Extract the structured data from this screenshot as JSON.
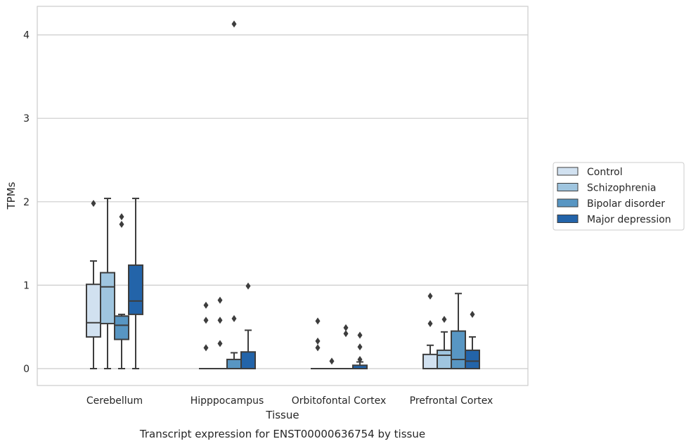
{
  "chart_data": {
    "type": "box",
    "caption": "Transcript expression for ENST00000636754 by tissue",
    "xlabel": "Tissue",
    "ylabel": "TPMs",
    "ylim": [
      -0.2,
      4.35
    ],
    "yticks": [
      "0",
      "1",
      "2",
      "3",
      "4"
    ],
    "grid": "horizontal",
    "legend_position": "right",
    "categories": [
      "Cerebellum",
      "Hipppocampus",
      "Orbitofontal Cortex",
      "Prefrontal Cortex"
    ],
    "series": [
      {
        "name": "Control",
        "color": "#d1e1f0",
        "boxes": [
          {
            "whislo": 0.0,
            "q1": 0.38,
            "med": 0.55,
            "q3": 1.01,
            "whishi": 1.29,
            "fliers": [
              1.98
            ]
          },
          {
            "whislo": 0.0,
            "q1": 0.0,
            "med": 0.0,
            "q3": 0.0,
            "whishi": 0.0,
            "fliers": [
              0.25,
              0.58,
              0.76
            ]
          },
          {
            "whislo": 0.0,
            "q1": 0.0,
            "med": 0.0,
            "q3": 0.0,
            "whishi": 0.0,
            "fliers": [
              0.25,
              0.33,
              0.57
            ]
          },
          {
            "whislo": 0.0,
            "q1": 0.0,
            "med": 0.0,
            "q3": 0.17,
            "whishi": 0.28,
            "fliers": [
              0.54,
              0.87
            ]
          }
        ]
      },
      {
        "name": "Schizophrenia",
        "color": "#9fc5df",
        "boxes": [
          {
            "whislo": 0.0,
            "q1": 0.54,
            "med": 0.98,
            "q3": 1.15,
            "whishi": 2.04,
            "fliers": []
          },
          {
            "whislo": 0.0,
            "q1": 0.0,
            "med": 0.0,
            "q3": 0.0,
            "whishi": 0.0,
            "fliers": [
              0.3,
              0.58,
              0.82
            ]
          },
          {
            "whislo": 0.0,
            "q1": 0.0,
            "med": 0.0,
            "q3": 0.0,
            "whishi": 0.0,
            "fliers": [
              0.09
            ]
          },
          {
            "whislo": 0.0,
            "q1": 0.0,
            "med": 0.16,
            "q3": 0.22,
            "whishi": 0.44,
            "fliers": [
              0.59
            ]
          }
        ]
      },
      {
        "name": "Bipolar disorder",
        "color": "#5896c3",
        "boxes": [
          {
            "whislo": 0.0,
            "q1": 0.35,
            "med": 0.52,
            "q3": 0.63,
            "whishi": 0.65,
            "fliers": [
              1.73,
              1.82
            ]
          },
          {
            "whislo": 0.0,
            "q1": 0.0,
            "med": 0.0,
            "q3": 0.11,
            "whishi": 0.19,
            "fliers": [
              0.6,
              4.13
            ]
          },
          {
            "whislo": 0.0,
            "q1": 0.0,
            "med": 0.0,
            "q3": 0.0,
            "whishi": 0.0,
            "fliers": [
              0.42,
              0.49
            ]
          },
          {
            "whislo": 0.0,
            "q1": 0.0,
            "med": 0.11,
            "q3": 0.45,
            "whishi": 0.9,
            "fliers": []
          }
        ]
      },
      {
        "name": "Major depression",
        "color": "#2364a9",
        "boxes": [
          {
            "whislo": 0.0,
            "q1": 0.65,
            "med": 0.81,
            "q3": 1.24,
            "whishi": 2.04,
            "fliers": []
          },
          {
            "whislo": 0.0,
            "q1": 0.0,
            "med": 0.0,
            "q3": 0.2,
            "whishi": 0.46,
            "fliers": [
              0.99
            ]
          },
          {
            "whislo": 0.0,
            "q1": 0.0,
            "med": 0.0,
            "q3": 0.04,
            "whishi": 0.08,
            "fliers": [
              0.11,
              0.26,
              0.4
            ]
          },
          {
            "whislo": 0.0,
            "q1": 0.0,
            "med": 0.09,
            "q3": 0.22,
            "whishi": 0.38,
            "fliers": [
              0.65
            ]
          }
        ]
      }
    ]
  }
}
